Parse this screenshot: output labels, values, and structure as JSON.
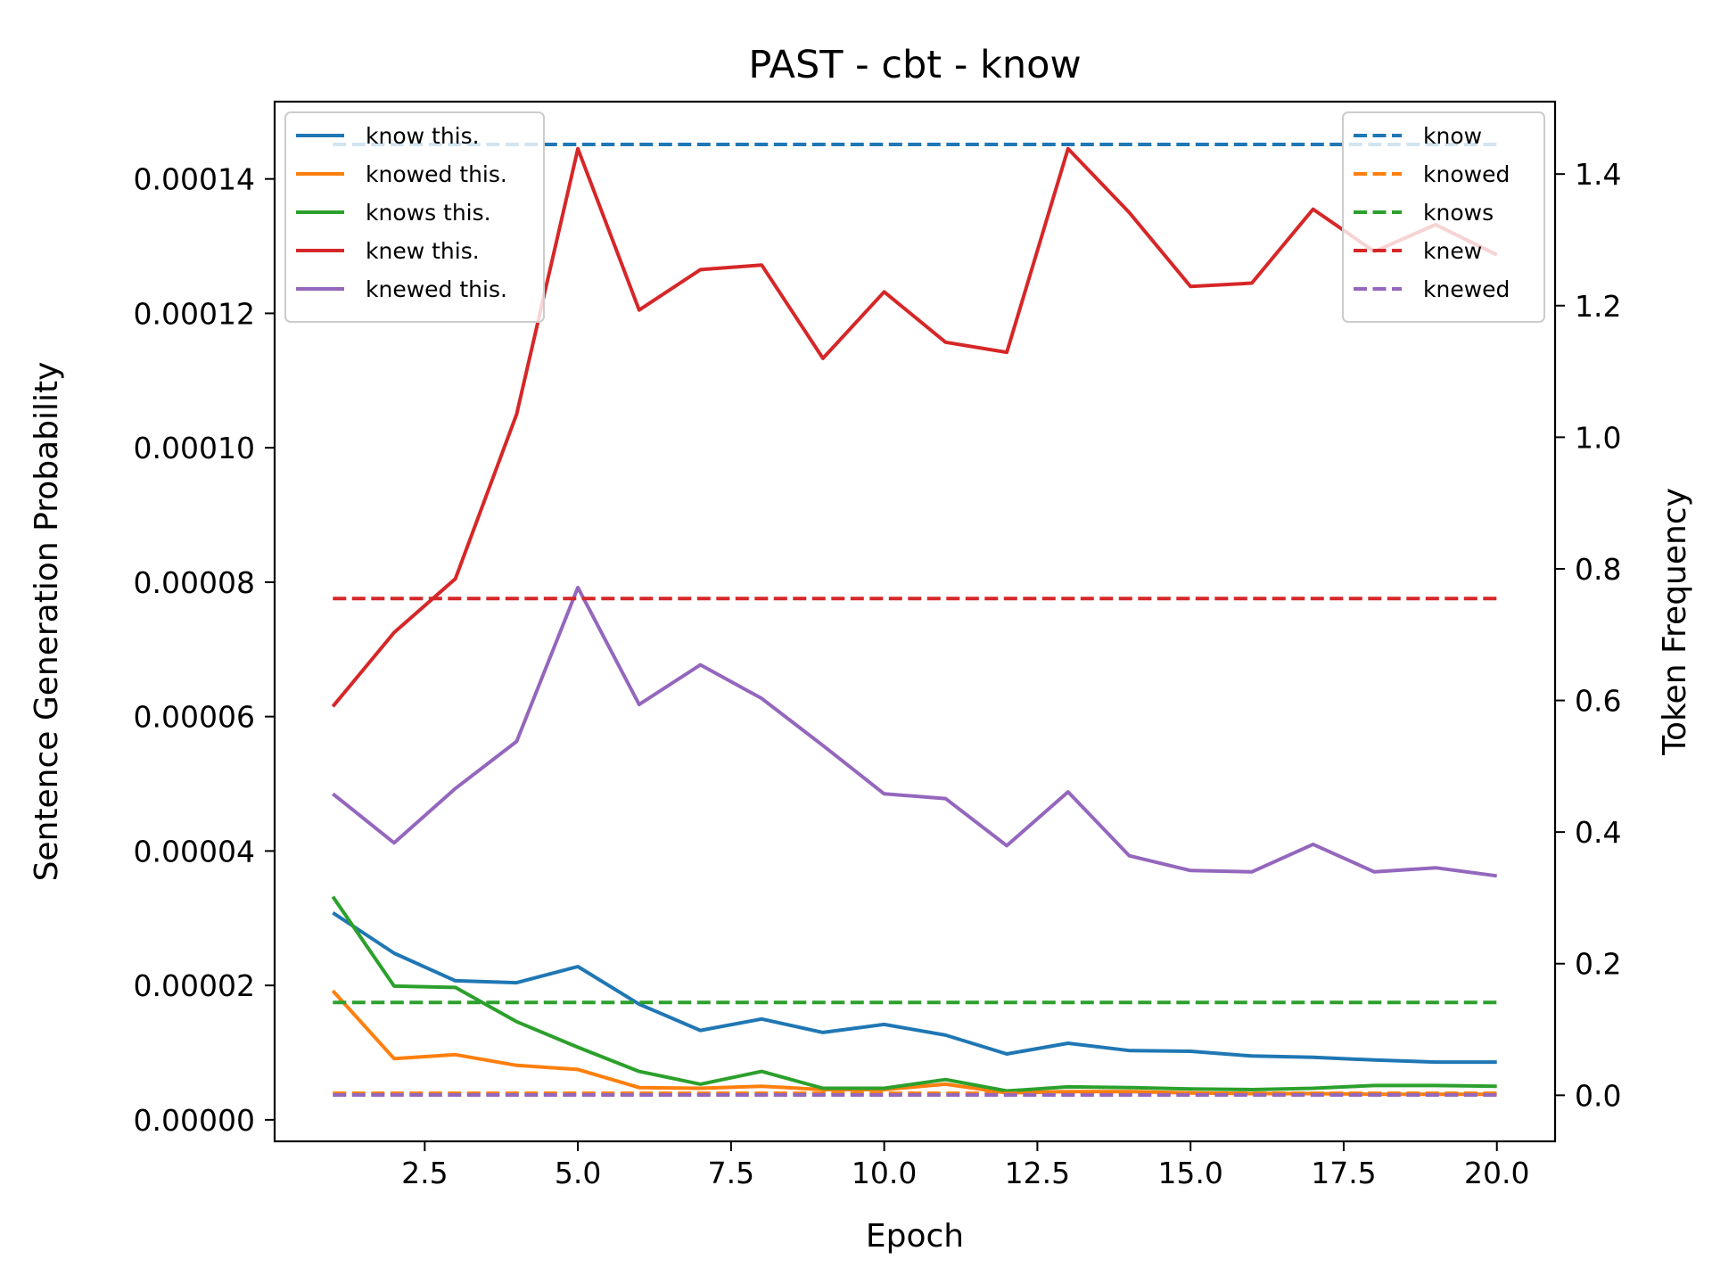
{
  "chart_data": {
    "type": "line",
    "title": "PAST - cbt - know",
    "xlabel": "Epoch",
    "ylabel": "Sentence Generation Probability",
    "y2label": "Token Frequency",
    "xlim": [
      0.05,
      20.95
    ],
    "ylim": [
      -3.2e-06,
      0.0001515
    ],
    "y2lim": [
      -0.07,
      1.51
    ],
    "xticks": [
      "2.5",
      "5.0",
      "7.5",
      "10.0",
      "12.5",
      "15.0",
      "17.5",
      "20.0"
    ],
    "yticks": [
      "0.00000",
      "0.00002",
      "0.00004",
      "0.00006",
      "0.00008",
      "0.00010",
      "0.00012",
      "0.00014"
    ],
    "y2ticks": [
      "0.0",
      "0.2",
      "0.4",
      "0.6",
      "0.8",
      "1.0",
      "1.2",
      "1.4"
    ],
    "grid": false,
    "legend_left_position": "upper-left",
    "legend_right_position": "upper-right",
    "x": [
      1,
      2,
      3,
      4,
      5,
      6,
      7,
      8,
      9,
      10,
      11,
      12,
      13,
      14,
      15,
      16,
      17,
      18,
      19,
      20
    ],
    "series": [
      {
        "name": "know this.",
        "axis": "left",
        "style": "solid",
        "color": "#1f77b4",
        "values": [
          3.08e-05,
          2.48e-05,
          2.07e-05,
          2.04e-05,
          2.28e-05,
          1.72e-05,
          1.33e-05,
          1.5e-05,
          1.3e-05,
          1.42e-05,
          1.26e-05,
          9.8e-06,
          1.14e-05,
          1.03e-05,
          1.02e-05,
          9.5e-06,
          9.3e-06,
          8.9e-06,
          8.6e-06,
          8.6e-06
        ]
      },
      {
        "name": "knowed this.",
        "axis": "left",
        "style": "solid",
        "color": "#ff7f0e",
        "values": [
          1.92e-05,
          9.1e-06,
          9.7e-06,
          8.1e-06,
          7.5e-06,
          4.8e-06,
          4.7e-06,
          5e-06,
          4.5e-06,
          4.5e-06,
          5.3e-06,
          4e-06,
          4.2e-06,
          4.2e-06,
          4e-06,
          3.9e-06,
          3.9e-06,
          3.8e-06,
          3.8e-06,
          3.8e-06
        ]
      },
      {
        "name": "knows this.",
        "axis": "left",
        "style": "solid",
        "color": "#2ca02c",
        "values": [
          3.32e-05,
          1.99e-05,
          1.97e-05,
          1.46e-05,
          1.08e-05,
          7.2e-06,
          5.3e-06,
          7.2e-06,
          4.7e-06,
          4.7e-06,
          6e-06,
          4.3e-06,
          4.9e-06,
          4.8e-06,
          4.6e-06,
          4.5e-06,
          4.7e-06,
          5.1e-06,
          5.1e-06,
          5e-06
        ]
      },
      {
        "name": "knew this.",
        "axis": "left",
        "style": "solid",
        "color": "#d62728",
        "values": [
          6.15e-05,
          7.25e-05,
          8.05e-05,
          0.000105,
          0.0001445,
          0.0001205,
          0.0001265,
          0.0001272,
          0.0001133,
          0.0001232,
          0.0001157,
          0.0001142,
          0.0001445,
          0.000135,
          0.000124,
          0.0001245,
          0.0001355,
          0.0001292,
          0.0001332,
          0.0001287
        ]
      },
      {
        "name": "knewed this.",
        "axis": "left",
        "style": "solid",
        "color": "#9467bd",
        "values": [
          4.85e-05,
          4.12e-05,
          4.93e-05,
          5.63e-05,
          7.92e-05,
          6.18e-05,
          6.77e-05,
          6.27e-05,
          5.57e-05,
          4.85e-05,
          4.78e-05,
          4.08e-05,
          4.88e-05,
          3.93e-05,
          3.71e-05,
          3.69e-05,
          4.1e-05,
          3.69e-05,
          3.75e-05,
          3.63e-05
        ]
      },
      {
        "name": "know",
        "axis": "right",
        "style": "dashed",
        "color": "#1f77b4",
        "values": [
          1.445,
          1.445,
          1.445,
          1.445,
          1.445,
          1.445,
          1.445,
          1.445,
          1.445,
          1.445,
          1.445,
          1.445,
          1.445,
          1.445,
          1.445,
          1.445,
          1.445,
          1.445,
          1.445,
          1.445
        ]
      },
      {
        "name": "knowed",
        "axis": "right",
        "style": "dashed",
        "color": "#ff7f0e",
        "values": [
          0.003,
          0.003,
          0.003,
          0.003,
          0.003,
          0.003,
          0.003,
          0.003,
          0.003,
          0.003,
          0.003,
          0.003,
          0.003,
          0.003,
          0.003,
          0.003,
          0.003,
          0.003,
          0.003,
          0.003
        ]
      },
      {
        "name": "knows",
        "axis": "right",
        "style": "dashed",
        "color": "#2ca02c",
        "values": [
          0.141,
          0.141,
          0.141,
          0.141,
          0.141,
          0.141,
          0.141,
          0.141,
          0.141,
          0.141,
          0.141,
          0.141,
          0.141,
          0.141,
          0.141,
          0.141,
          0.141,
          0.141,
          0.141,
          0.141
        ]
      },
      {
        "name": "knew",
        "axis": "right",
        "style": "dashed",
        "color": "#d62728",
        "values": [
          0.755,
          0.755,
          0.755,
          0.755,
          0.755,
          0.755,
          0.755,
          0.755,
          0.755,
          0.755,
          0.755,
          0.755,
          0.755,
          0.755,
          0.755,
          0.755,
          0.755,
          0.755,
          0.755,
          0.755
        ]
      },
      {
        "name": "knewed",
        "axis": "right",
        "style": "dashed",
        "color": "#9467bd",
        "values": [
          0.0005,
          0.0005,
          0.0005,
          0.0005,
          0.0005,
          0.0005,
          0.0005,
          0.0005,
          0.0005,
          0.0005,
          0.0005,
          0.0005,
          0.0005,
          0.0005,
          0.0005,
          0.0005,
          0.0005,
          0.0005,
          0.0005,
          0.0005
        ]
      }
    ]
  }
}
